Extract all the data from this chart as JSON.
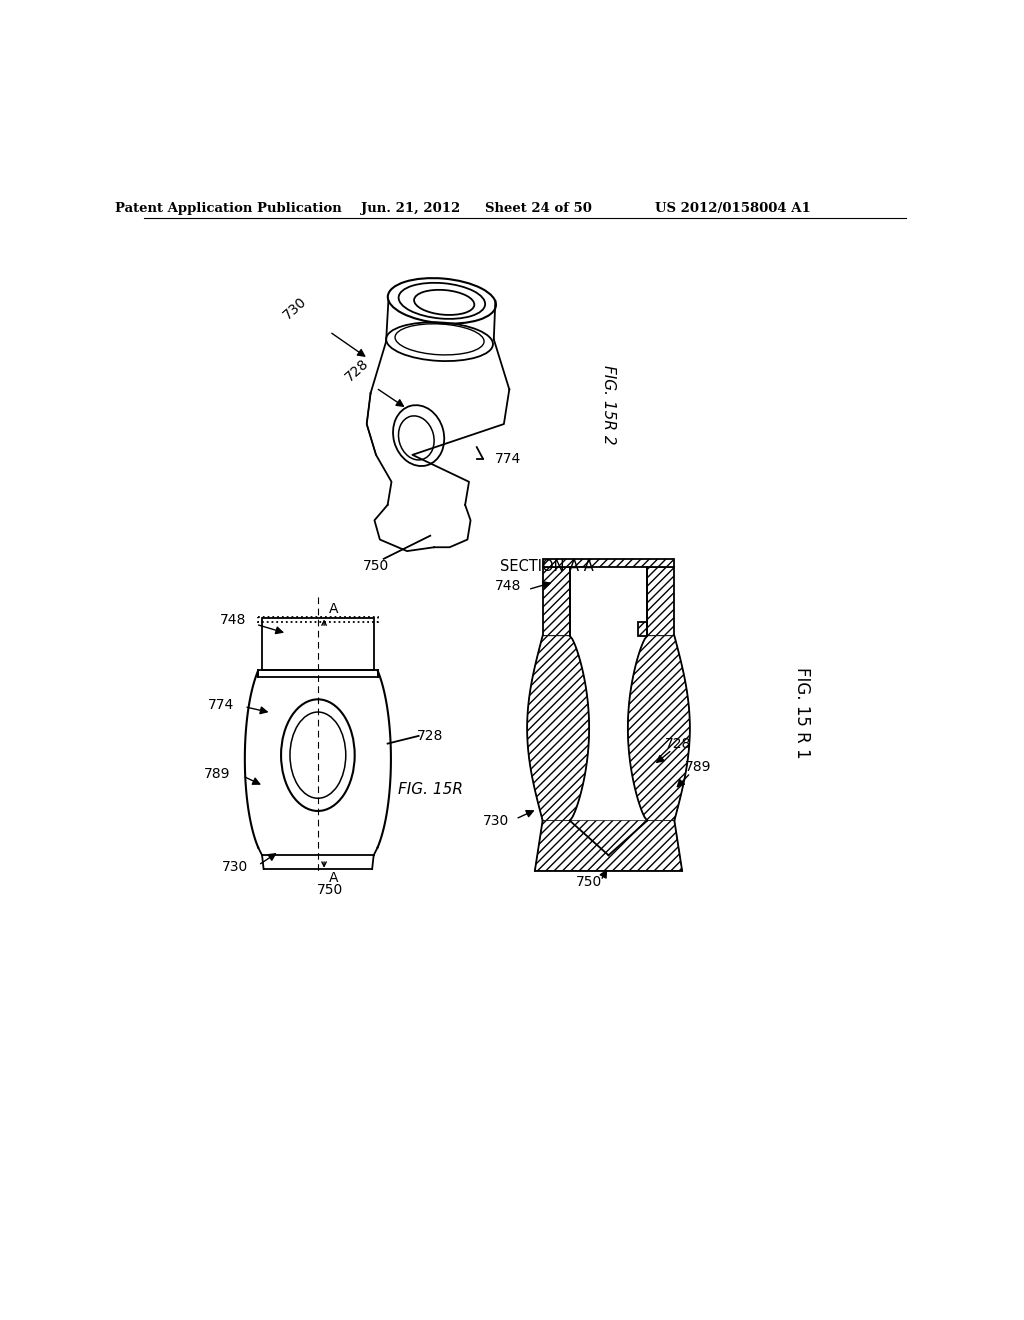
{
  "bg_color": "#ffffff",
  "black": "#000000",
  "header_text": "Patent Application Publication",
  "header_date": "Jun. 21, 2012",
  "header_sheet": "Sheet 24 of 50",
  "header_patent": "US 2012/0158004 A1",
  "lw": 1.3
}
